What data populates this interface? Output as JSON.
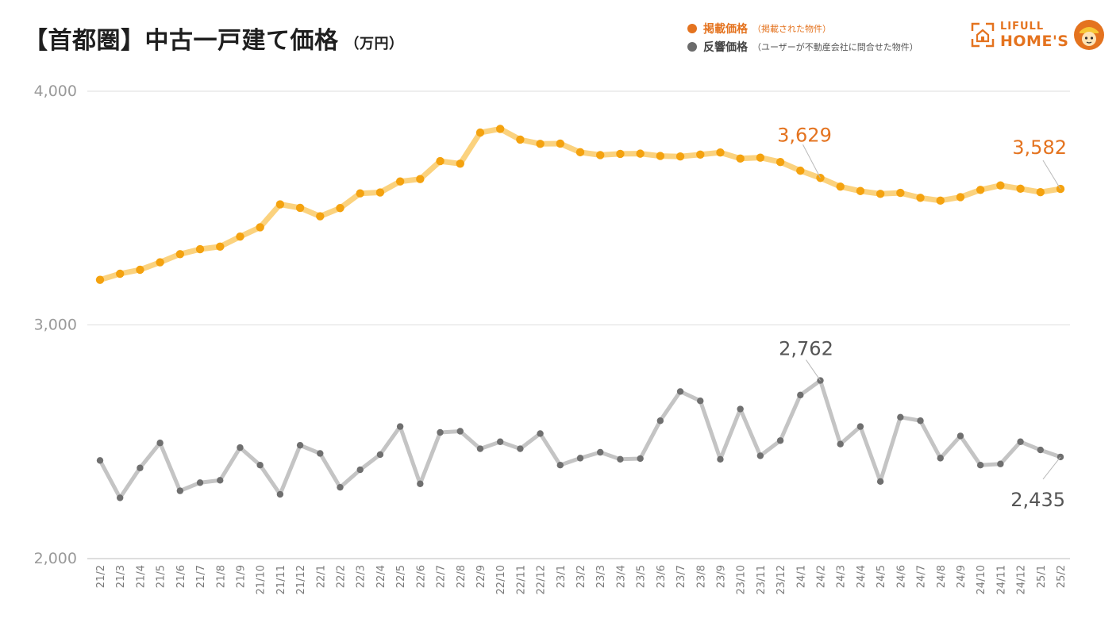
{
  "header": {
    "title": "【首都圏】中古一戸建て価格",
    "unit": "（万円）"
  },
  "legend": [
    {
      "name": "掲載価格",
      "note": "（掲載された物件）",
      "color": "#e4731f"
    },
    {
      "name": "反響価格",
      "note": "（ユーザーが不動産会社に問合せた物件）",
      "color": "#6b6b6b"
    }
  ],
  "logo": {
    "top": "LIFULL",
    "bottom": "HOME'S",
    "color": "#e4731f"
  },
  "chart_data": {
    "type": "line",
    "title": "【首都圏】中古一戸建て価格",
    "ylabel": "（万円）",
    "ylim": [
      2000,
      4000
    ],
    "yticks": [
      2000,
      3000,
      4000
    ],
    "ytick_labels": [
      "2,000",
      "3,000",
      "4,000"
    ],
    "grid": true,
    "legend_position": "top-right",
    "categories": [
      "21/2",
      "21/3",
      "21/4",
      "21/5",
      "21/6",
      "21/7",
      "21/8",
      "21/9",
      "21/10",
      "21/11",
      "21/12",
      "22/1",
      "22/2",
      "22/3",
      "22/4",
      "22/5",
      "22/6",
      "22/7",
      "22/8",
      "22/9",
      "22/10",
      "22/11",
      "22/12",
      "23/1",
      "23/2",
      "23/3",
      "23/4",
      "23/5",
      "23/6",
      "23/7",
      "23/8",
      "23/9",
      "23/10",
      "23/11",
      "23/12",
      "24/1",
      "24/2",
      "24/3",
      "24/4",
      "24/5",
      "24/6",
      "24/7",
      "24/8",
      "24/9",
      "24/10",
      "24/11",
      "24/12",
      "25/1",
      "25/2"
    ],
    "series": [
      {
        "name": "掲載価格",
        "line_color": "#fbd27e",
        "marker_color": "#f4a20f",
        "values": [
          3193,
          3219,
          3236,
          3268,
          3303,
          3324,
          3335,
          3378,
          3418,
          3516,
          3501,
          3465,
          3500,
          3563,
          3567,
          3614,
          3624,
          3701,
          3690,
          3823,
          3839,
          3793,
          3775,
          3776,
          3739,
          3727,
          3732,
          3733,
          3723,
          3721,
          3729,
          3738,
          3712,
          3716,
          3697,
          3660,
          3629,
          3592,
          3573,
          3561,
          3565,
          3544,
          3532,
          3547,
          3578,
          3597,
          3583,
          3568,
          3582
        ],
        "annotations": [
          {
            "index": 36,
            "label": "3,629"
          },
          {
            "index": 48,
            "label": "3,582"
          }
        ]
      },
      {
        "name": "反響価格",
        "line_color": "#c4c4c4",
        "marker_color": "#6f6f6f",
        "values": [
          2420,
          2260,
          2388,
          2495,
          2290,
          2325,
          2335,
          2475,
          2400,
          2275,
          2485,
          2450,
          2305,
          2380,
          2445,
          2565,
          2320,
          2540,
          2545,
          2470,
          2500,
          2470,
          2535,
          2400,
          2430,
          2455,
          2425,
          2428,
          2590,
          2715,
          2675,
          2425,
          2640,
          2440,
          2505,
          2700,
          2762,
          2490,
          2565,
          2330,
          2605,
          2590,
          2430,
          2525,
          2400,
          2405,
          2500,
          2465,
          2435
        ],
        "annotations": [
          {
            "index": 36,
            "label": "2,762"
          },
          {
            "index": 48,
            "label": "2,435"
          }
        ]
      }
    ]
  }
}
